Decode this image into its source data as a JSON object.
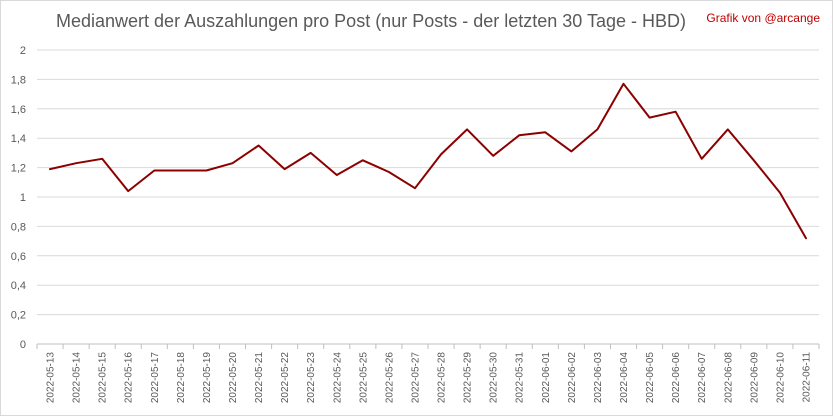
{
  "title": "Medianwert der Auszahlungen pro Post (nur Posts - der letzten 30 Tage - HBD)",
  "credit": "Grafik von @arcange",
  "colors": {
    "line": "#8b0000",
    "grid": "#d9d9d9",
    "credit": "#c00000"
  },
  "chart_data": {
    "type": "line",
    "title": "Medianwert der Auszahlungen pro Post (nur Posts - der letzten 30 Tage - HBD)",
    "xlabel": "",
    "ylabel": "",
    "ylim": [
      0,
      2
    ],
    "yticks": [
      "0",
      "0,2",
      "0,4",
      "0,6",
      "0,8",
      "1",
      "1,2",
      "1,4",
      "1,6",
      "1,8",
      "2"
    ],
    "grid": true,
    "legend": "none",
    "categories": [
      "2022-05-13",
      "2022-05-14",
      "2022-05-15",
      "2022-05-16",
      "2022-05-17",
      "2022-05-18",
      "2022-05-19",
      "2022-05-20",
      "2022-05-21",
      "2022-05-22",
      "2022-05-23",
      "2022-05-24",
      "2022-05-25",
      "2022-05-26",
      "2022-05-27",
      "2022-05-28",
      "2022-05-29",
      "2022-05-30",
      "2022-05-31",
      "2022-06-01",
      "2022-06-02",
      "2022-06-03",
      "2022-06-04",
      "2022-06-05",
      "2022-06-06",
      "2022-06-07",
      "2022-06-08",
      "2022-06-09",
      "2022-06-10",
      "2022-06-11"
    ],
    "values": [
      1.19,
      1.23,
      1.26,
      1.04,
      1.18,
      1.18,
      1.18,
      1.23,
      1.35,
      1.19,
      1.3,
      1.15,
      1.25,
      1.17,
      1.06,
      1.29,
      1.46,
      1.28,
      1.42,
      1.44,
      1.31,
      1.46,
      1.77,
      1.54,
      1.58,
      1.26,
      1.46,
      1.25,
      1.03,
      0.72
    ]
  }
}
